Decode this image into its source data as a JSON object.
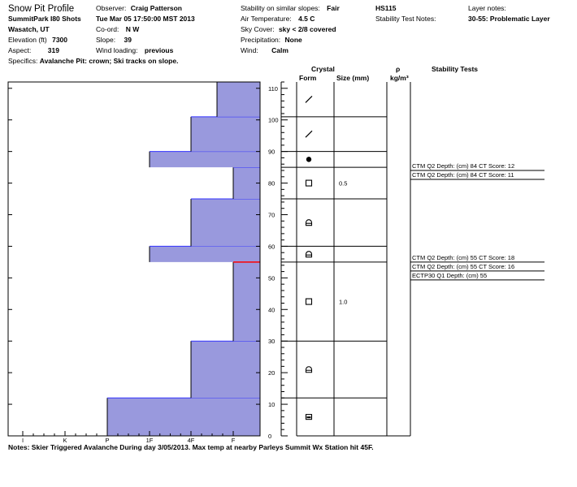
{
  "header": {
    "title": "Snow Pit Profile",
    "location": "SummitPark I80 Shots",
    "region": "Wasatch, UT",
    "elevation_label": "Elevation (ft)",
    "elevation": "7300",
    "aspect_label": "Aspect:",
    "aspect": "319",
    "specifics_label": "Specifics:",
    "specifics": "Avalanche Pit: crown; Ski tracks on slope.",
    "observer_label": "Observer:",
    "observer": "Craig Patterson",
    "datetime": "Tue Mar 05 17:50:00 MST 2013",
    "coord_label": "Co-ord:",
    "coord": "N  W",
    "slope_label": "Slope:",
    "slope": "39",
    "wind_loading_label": "Wind loading:",
    "wind_loading": "previous",
    "stability_label": "Stability on similar slopes:",
    "stability": "Fair",
    "air_temp_label": "Air Temperature:",
    "air_temp": "4.5 C",
    "sky_cover_label": "Sky Cover:",
    "sky_cover": "sky < 2/8 covered",
    "precip_label": "Precipitation:",
    "precip": "None",
    "wind_label": "Wind:",
    "wind": "Calm",
    "hs": "HS115",
    "stability_notes_label": "Stability Test Notes:",
    "layer_notes_label": "Layer notes:",
    "layer_notes": "30-55: Problematic Layer"
  },
  "columns": {
    "crystal": "Crystal",
    "form": "Form",
    "size": "Size (mm)",
    "rho": "ρ",
    "rho_unit": "kg/m³",
    "stability_tests": "Stability Tests"
  },
  "notes": "Notes:  Skier Triggered Avalanche During day 3/05/2013.  Max temp at nearby Parleys Summit Wx Station hit 45F.",
  "colors": {
    "fill": "#9999dd",
    "layer_line": "#3333ff",
    "problem_line": "#ff0000"
  },
  "chart_data": {
    "type": "bar",
    "orientation": "horizontal-step",
    "y_axis": {
      "min": 0,
      "max": 112,
      "ticks": [
        "0",
        "10",
        "20",
        "30",
        "40",
        "50",
        "60",
        "70",
        "80",
        "90",
        "100",
        "110"
      ]
    },
    "x_axis": {
      "categories": [
        "I",
        "K",
        "P",
        "1F",
        "4F",
        "F"
      ]
    },
    "hardness_profile": [
      {
        "bottom": 0,
        "top": 12,
        "hardness": "P"
      },
      {
        "bottom": 12,
        "top": 30,
        "hardness": "4F"
      },
      {
        "bottom": 30,
        "top": 55,
        "hardness": "F"
      },
      {
        "bottom": 55,
        "top": 60,
        "hardness": "1F"
      },
      {
        "bottom": 60,
        "top": 75,
        "hardness": "4F"
      },
      {
        "bottom": 75,
        "top": 85,
        "hardness": "F"
      },
      {
        "bottom": 85,
        "top": 90,
        "hardness": "1F"
      },
      {
        "bottom": 90,
        "top": 101,
        "hardness": "4F"
      },
      {
        "bottom": 101,
        "top": 112,
        "hardness": "4F-F"
      }
    ],
    "problem_layer_depth": 55,
    "layers": [
      {
        "bottom": 0,
        "top": 12,
        "form": "rounded-faceted",
        "size": ""
      },
      {
        "bottom": 12,
        "top": 30,
        "form": "faceted-rounded",
        "size": ""
      },
      {
        "bottom": 30,
        "top": 55,
        "form": "faceted",
        "size": "1.0"
      },
      {
        "bottom": 55,
        "top": 60,
        "form": "faceted-rounded",
        "size": ""
      },
      {
        "bottom": 60,
        "top": 75,
        "form": "faceted-rounded",
        "size": ""
      },
      {
        "bottom": 75,
        "top": 85,
        "form": "faceted",
        "size": "0.5"
      },
      {
        "bottom": 85,
        "top": 90,
        "form": "melt-freeze",
        "size": ""
      },
      {
        "bottom": 90,
        "top": 101,
        "form": "decomposing",
        "size": ""
      },
      {
        "bottom": 101,
        "top": 112,
        "form": "decomposing",
        "size": ""
      }
    ],
    "stability_tests": [
      {
        "depth": 84,
        "text": "CTM Q2 Depth: (cm) 84 CT Score: 12"
      },
      {
        "depth": 84,
        "text": "CTM Q2 Depth: (cm) 84 CT Score: 11"
      },
      {
        "depth": 55,
        "text": "CTM Q2 Depth: (cm) 55 CT Score: 18"
      },
      {
        "depth": 55,
        "text": "CTM Q2 Depth: (cm) 55 CT Score: 16"
      },
      {
        "depth": 55,
        "text": "ECTP30 Q1 Depth: (cm) 55"
      }
    ]
  }
}
